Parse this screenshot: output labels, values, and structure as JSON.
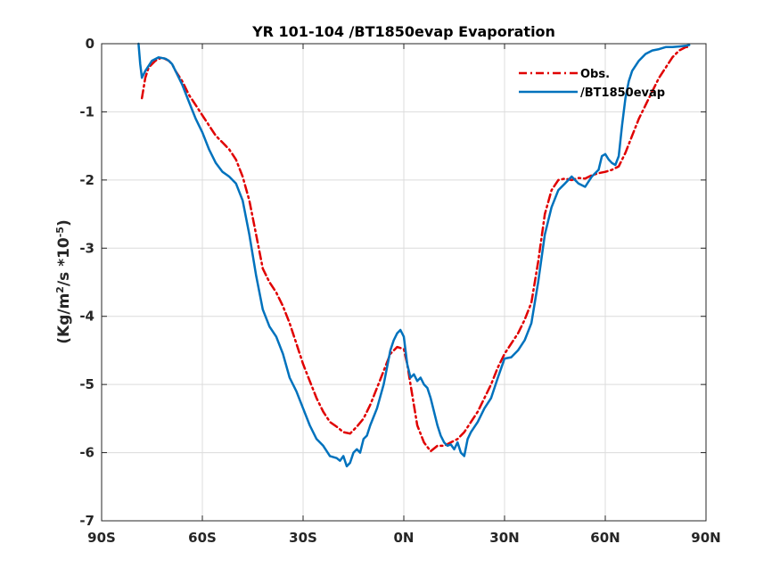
{
  "chart_data": {
    "type": "line",
    "title": "YR 101-104 /BT1850evap Evaporation",
    "xlabel": "",
    "ylabel_parts": {
      "pre": "(Kg/m",
      "sup1": "2",
      "mid": "/s *10",
      "sup2": "-5",
      "post": ")"
    },
    "xlim": [
      -90,
      90
    ],
    "ylim": [
      -7,
      0
    ],
    "xticks": [
      -90,
      -60,
      -30,
      0,
      30,
      60,
      90
    ],
    "xtick_labels": [
      "90S",
      "60S",
      "30S",
      "0N",
      "30N",
      "60N",
      "90N"
    ],
    "yticks": [
      0,
      -1,
      -2,
      -3,
      -4,
      -5,
      -6,
      -7
    ],
    "ytick_labels": [
      "0",
      "-1",
      "-2",
      "-3",
      "-4",
      "-5",
      "-6",
      "-7"
    ],
    "grid": true,
    "legend_position": "top-right",
    "series": [
      {
        "name": "Obs.",
        "color": "#e00000",
        "style": "dash-dot",
        "x": [
          -78,
          -77,
          -76,
          -75,
          -74,
          -72,
          -70,
          -69,
          -68,
          -66,
          -64,
          -62,
          -60,
          -58,
          -56,
          -54,
          -52,
          -50,
          -48,
          -46,
          -44,
          -42,
          -40,
          -38,
          -36,
          -34,
          -32,
          -30,
          -28,
          -26,
          -24,
          -22,
          -20,
          -18,
          -16,
          -14,
          -12,
          -10,
          -8,
          -6,
          -4,
          -2,
          0,
          1,
          2,
          3,
          4,
          6,
          8,
          10,
          12,
          14,
          16,
          18,
          20,
          22,
          24,
          26,
          28,
          30,
          32,
          34,
          36,
          38,
          40,
          42,
          44,
          46,
          48,
          50,
          52,
          54,
          56,
          58,
          60,
          62,
          64,
          66,
          68,
          70,
          72,
          74,
          76,
          78,
          80,
          82,
          84,
          85
        ],
        "y": [
          -0.8,
          -0.5,
          -0.35,
          -0.3,
          -0.25,
          -0.2,
          -0.25,
          -0.3,
          -0.4,
          -0.55,
          -0.75,
          -0.9,
          -1.05,
          -1.2,
          -1.35,
          -1.45,
          -1.55,
          -1.7,
          -1.95,
          -2.3,
          -2.8,
          -3.3,
          -3.5,
          -3.65,
          -3.85,
          -4.1,
          -4.4,
          -4.7,
          -4.95,
          -5.2,
          -5.4,
          -5.55,
          -5.62,
          -5.7,
          -5.72,
          -5.62,
          -5.5,
          -5.3,
          -5.05,
          -4.8,
          -4.55,
          -4.45,
          -4.48,
          -4.7,
          -5.0,
          -5.3,
          -5.6,
          -5.85,
          -5.98,
          -5.9,
          -5.9,
          -5.85,
          -5.8,
          -5.7,
          -5.55,
          -5.4,
          -5.2,
          -5.0,
          -4.75,
          -4.55,
          -4.4,
          -4.25,
          -4.05,
          -3.8,
          -3.2,
          -2.5,
          -2.15,
          -2.0,
          -1.98,
          -2.0,
          -1.97,
          -1.98,
          -1.93,
          -1.9,
          -1.88,
          -1.85,
          -1.8,
          -1.6,
          -1.35,
          -1.1,
          -0.9,
          -0.7,
          -0.5,
          -0.35,
          -0.2,
          -0.1,
          -0.05,
          -0.05
        ]
      },
      {
        "name": "/BT1850evap",
        "color": "#0072bd",
        "style": "solid",
        "x": [
          -79,
          -78.5,
          -78,
          -77,
          -75,
          -73,
          -71,
          -70,
          -69,
          -68,
          -66,
          -64,
          -62,
          -60,
          -58,
          -56,
          -54,
          -52,
          -50,
          -48,
          -46,
          -44,
          -42,
          -40,
          -38,
          -36,
          -34,
          -32,
          -30,
          -28,
          -26,
          -24,
          -22,
          -20,
          -19,
          -18,
          -17,
          -16,
          -15,
          -14,
          -13,
          -12,
          -11,
          -10,
          -8,
          -6,
          -4,
          -3,
          -2,
          -1,
          0,
          1,
          2,
          3,
          4,
          5,
          6,
          7,
          8,
          9,
          10,
          11,
          12,
          13,
          14,
          15,
          16,
          17,
          18,
          19,
          20,
          22,
          24,
          26,
          28,
          30,
          32,
          34,
          36,
          38,
          40,
          42,
          44,
          46,
          48,
          50,
          52,
          54,
          56,
          58,
          59,
          60,
          61,
          62,
          63,
          64,
          65,
          66,
          67,
          68,
          70,
          72,
          74,
          76,
          78,
          80,
          82,
          84,
          85
        ],
        "y": [
          0.0,
          -0.3,
          -0.5,
          -0.4,
          -0.25,
          -0.2,
          -0.22,
          -0.25,
          -0.3,
          -0.4,
          -0.6,
          -0.85,
          -1.1,
          -1.3,
          -1.55,
          -1.75,
          -1.88,
          -1.95,
          -2.05,
          -2.3,
          -2.8,
          -3.4,
          -3.9,
          -4.15,
          -4.3,
          -4.55,
          -4.9,
          -5.1,
          -5.35,
          -5.6,
          -5.8,
          -5.9,
          -6.05,
          -6.08,
          -6.12,
          -6.05,
          -6.2,
          -6.15,
          -6.0,
          -5.95,
          -6.0,
          -5.8,
          -5.75,
          -5.6,
          -5.35,
          -5.0,
          -4.5,
          -4.35,
          -4.25,
          -4.2,
          -4.3,
          -4.7,
          -4.9,
          -4.85,
          -4.95,
          -4.9,
          -5.0,
          -5.05,
          -5.2,
          -5.4,
          -5.6,
          -5.75,
          -5.85,
          -5.9,
          -5.88,
          -5.95,
          -5.85,
          -6.0,
          -6.05,
          -5.8,
          -5.7,
          -5.55,
          -5.35,
          -5.2,
          -4.9,
          -4.62,
          -4.6,
          -4.5,
          -4.35,
          -4.1,
          -3.5,
          -2.8,
          -2.4,
          -2.15,
          -2.05,
          -1.95,
          -2.05,
          -2.1,
          -1.95,
          -1.85,
          -1.65,
          -1.62,
          -1.7,
          -1.75,
          -1.78,
          -1.65,
          -1.2,
          -0.8,
          -0.55,
          -0.4,
          -0.25,
          -0.15,
          -0.1,
          -0.08,
          -0.05,
          -0.05,
          -0.04,
          -0.03,
          -0.02
        ]
      }
    ]
  }
}
